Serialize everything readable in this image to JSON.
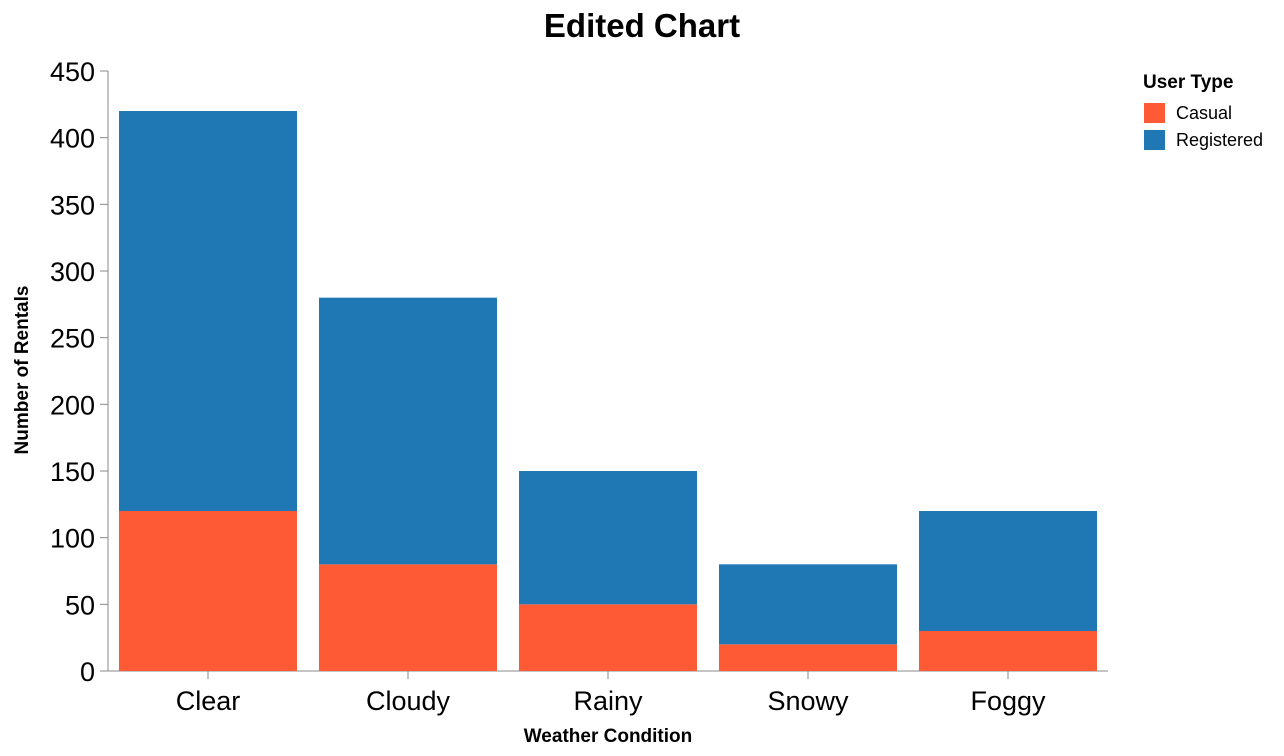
{
  "chart_data": {
    "type": "bar",
    "stacked": true,
    "title": "Edited Chart",
    "xlabel": "Weather Condition",
    "ylabel": "Number of Rentals",
    "ylim": [
      0,
      450
    ],
    "yticks": [
      0,
      50,
      100,
      150,
      200,
      250,
      300,
      350,
      400,
      450
    ],
    "categories": [
      "Clear",
      "Cloudy",
      "Rainy",
      "Snowy",
      "Foggy"
    ],
    "series": [
      {
        "name": "Casual",
        "color": "#ff5a36",
        "values": [
          120,
          80,
          50,
          20,
          30
        ]
      },
      {
        "name": "Registered",
        "color": "#1f77b4",
        "values": [
          300,
          200,
          100,
          60,
          90
        ]
      }
    ],
    "legend": {
      "title": "User Type",
      "position": "top-right"
    },
    "grid": false
  }
}
